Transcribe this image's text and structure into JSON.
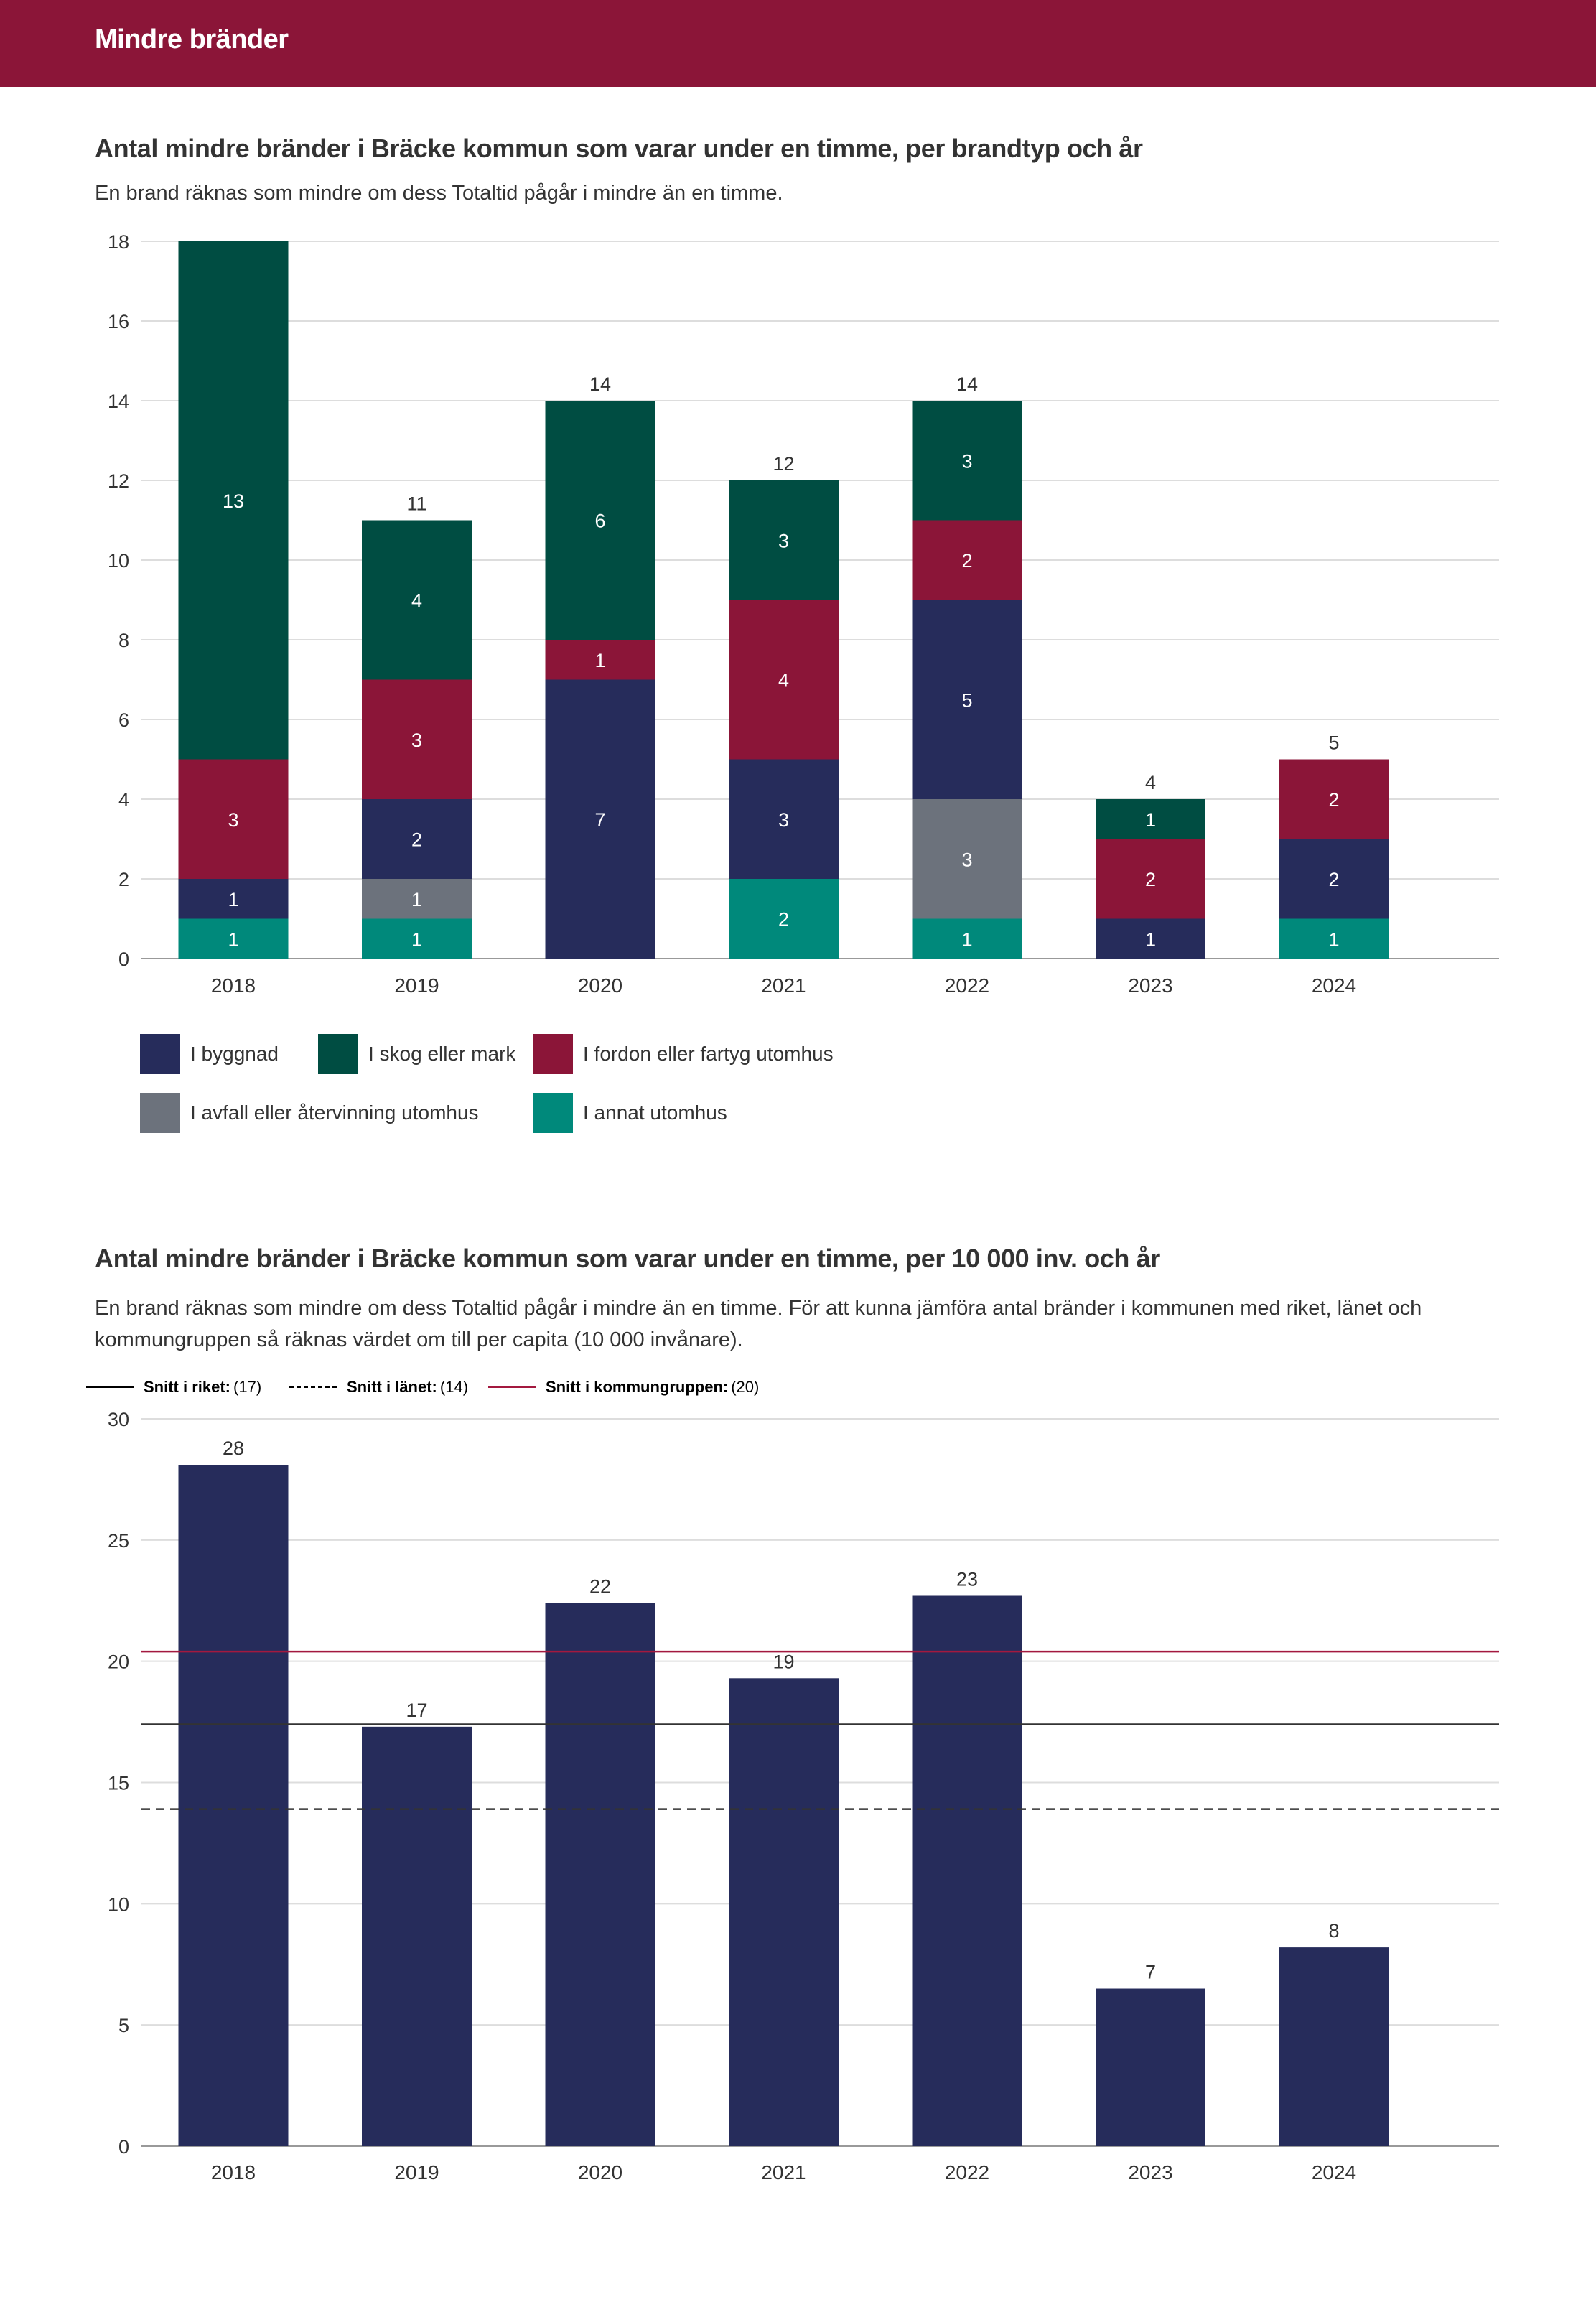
{
  "header": {
    "title": "Mindre bränder"
  },
  "colors": {
    "banner": "#8b1538",
    "byggnad": "#262c5b",
    "skog": "#004d42",
    "fordon": "#8b1538",
    "avfall": "#6c727c",
    "annat": "#00897b",
    "grid": "#dddddd",
    "axis": "#999999",
    "riket": "#333333",
    "lanet": "#333333",
    "kommungrupp": "#a3193f"
  },
  "chart1": {
    "title": "Antal mindre bränder i Bräcke kommun som varar under en timme, per brandtyp och år",
    "subtitle": "En brand räknas som mindre om dess Totaltid pågår i mindre än en timme.",
    "legend": [
      {
        "key": "byggnad",
        "label": "I byggnad"
      },
      {
        "key": "skog",
        "label": "I skog eller mark"
      },
      {
        "key": "fordon",
        "label": "I fordon eller fartyg utomhus"
      },
      {
        "key": "avfall",
        "label": "I avfall eller återvinning utomhus"
      },
      {
        "key": "annat",
        "label": "I annat utomhus"
      }
    ]
  },
  "chart2": {
    "title": "Antal mindre bränder i Bräcke kommun som varar under en timme, per 10 000 inv. och år",
    "subtitle": "En brand räknas som mindre om dess Totaltid pågår i mindre än en timme. För att kunna jämföra antal bränder i kommunen med riket, länet och kommungruppen så räknas värdet om till per capita (10 000 invånare).",
    "legend": [
      {
        "key": "riket",
        "label": "Snitt i riket:",
        "value": "(17)"
      },
      {
        "key": "lanet",
        "label": "Snitt i länet:",
        "value": "(14)"
      },
      {
        "key": "kommungrupp",
        "label": "Snitt i kommungruppen:",
        "value": "(20)"
      }
    ]
  },
  "chart_data": [
    {
      "type": "bar",
      "stacked": true,
      "title": "Antal mindre bränder i Bräcke kommun som varar under en timme, per brandtyp och år",
      "categories": [
        "2018",
        "2019",
        "2020",
        "2021",
        "2022",
        "2023",
        "2024"
      ],
      "series": [
        {
          "key": "annat",
          "name": "I annat utomhus",
          "values": [
            1,
            1,
            0,
            2,
            1,
            0,
            1
          ]
        },
        {
          "key": "avfall",
          "name": "I avfall eller återvinning utomhus",
          "values": [
            0,
            1,
            0,
            0,
            3,
            0,
            0
          ]
        },
        {
          "key": "byggnad",
          "name": "I byggnad",
          "values": [
            1,
            2,
            7,
            3,
            5,
            1,
            2
          ]
        },
        {
          "key": "fordon",
          "name": "I fordon eller fartyg utomhus",
          "values": [
            3,
            3,
            1,
            4,
            2,
            2,
            2
          ]
        },
        {
          "key": "skog",
          "name": "I skog eller mark",
          "values": [
            13,
            4,
            6,
            3,
            3,
            1,
            0
          ]
        }
      ],
      "totals": [
        18,
        11,
        14,
        12,
        14,
        4,
        5
      ],
      "total_labels": [
        null,
        "11",
        "14",
        "12",
        "14",
        "4",
        "5"
      ],
      "yticks": [
        0,
        2,
        4,
        6,
        8,
        10,
        12,
        14,
        16,
        18
      ],
      "ylim": [
        0,
        18
      ],
      "legend_position": "bottom-left"
    },
    {
      "type": "bar",
      "title": "Antal mindre bränder i Bräcke kommun som varar under en timme, per 10 000 inv. och år",
      "categories": [
        "2018",
        "2019",
        "2020",
        "2021",
        "2022",
        "2023",
        "2024"
      ],
      "values": [
        28.1,
        17.3,
        22.4,
        19.3,
        22.7,
        6.5,
        8.2
      ],
      "value_labels": [
        "28",
        "17",
        "22",
        "19",
        "23",
        "7",
        "8"
      ],
      "reference_lines": [
        {
          "key": "riket",
          "name": "Snitt i riket",
          "value": 17.4,
          "style": "solid"
        },
        {
          "key": "lanet",
          "name": "Snitt i länet",
          "value": 13.9,
          "style": "dashed"
        },
        {
          "key": "kommungrupp",
          "name": "Snitt i kommungruppen",
          "value": 20.4,
          "style": "solid"
        }
      ],
      "yticks": [
        0,
        5,
        10,
        15,
        20,
        25,
        30
      ],
      "ylim": [
        0,
        30
      ],
      "legend_position": "top-left"
    }
  ]
}
